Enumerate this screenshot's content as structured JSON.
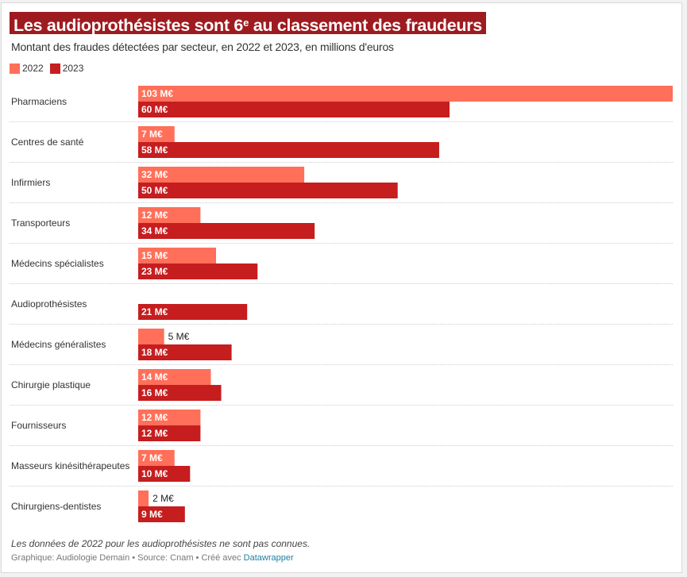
{
  "title": {
    "main": "Les audioprothésistes sont 6",
    "superscript": "e",
    "rest": " au classement des fraudeurs"
  },
  "subtitle": "Montant des fraudes détectées par secteur, en 2022 et 2023, en millions d'euros",
  "note": "Les données de 2022 pour les audioprothésistes ne sont pas connues.",
  "credit": {
    "text": "Graphique: Audiologie Demain • Source: Cnam • Créé avec ",
    "link": "Datawrapper"
  },
  "colors": {
    "2022": "#ff6f59",
    "2023": "#c61d1f",
    "title_bg": "#9e1b1f"
  },
  "chart_data": {
    "type": "bar",
    "orientation": "horizontal",
    "title": "Les audioprothésistes sont 6e au classement des fraudeurs",
    "subtitle": "Montant des fraudes détectées par secteur, en 2022 et 2023, en millions d'euros",
    "unit": "M€",
    "categories": [
      "Pharmaciens",
      "Centres de santé",
      "Infirmiers",
      "Transporteurs",
      "Médecins spécialistes",
      "Audioprothésistes",
      "Médecins généralistes",
      "Chirurgie plastique",
      "Fournisseurs",
      "Masseurs kinésithérapeutes",
      "Chirurgiens-dentistes"
    ],
    "series": [
      {
        "name": "2022",
        "values": [
          103,
          7,
          32,
          12,
          15,
          null,
          5,
          14,
          12,
          7,
          2
        ]
      },
      {
        "name": "2023",
        "values": [
          60,
          58,
          50,
          34,
          23,
          21,
          18,
          16,
          12,
          10,
          9
        ]
      }
    ],
    "xlim": [
      0,
      103
    ],
    "grid": false,
    "legend": "top-left"
  }
}
